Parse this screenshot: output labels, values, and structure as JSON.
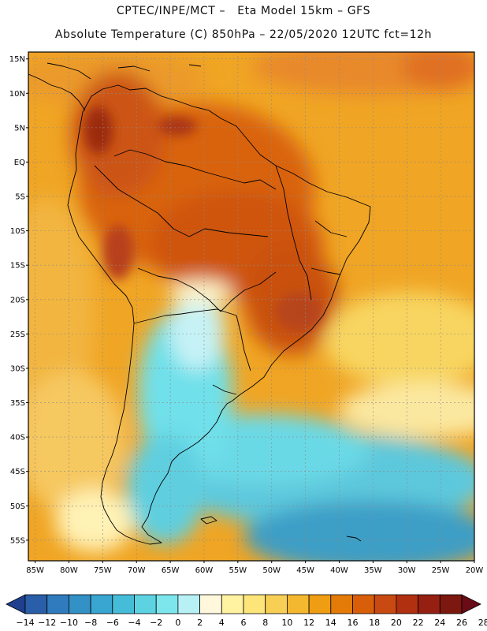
{
  "header": {
    "line1": "CPTEC/INPE/MCT –   Eta Model 15km – GFS",
    "line2": "Absolute Temperature (C) 850hPa – 22/05/2020 12UTC fct=12h"
  },
  "map": {
    "extent": {
      "lon": [
        -86,
        -20
      ],
      "lat": [
        -58,
        16
      ]
    },
    "lat_labels": [
      {
        "v": 15,
        "t": "15N"
      },
      {
        "v": 10,
        "t": "10N"
      },
      {
        "v": 5,
        "t": "5N"
      },
      {
        "v": 0,
        "t": "EQ"
      },
      {
        "v": -5,
        "t": "5S"
      },
      {
        "v": -10,
        "t": "10S"
      },
      {
        "v": -15,
        "t": "15S"
      },
      {
        "v": -20,
        "t": "20S"
      },
      {
        "v": -25,
        "t": "25S"
      },
      {
        "v": -30,
        "t": "30S"
      },
      {
        "v": -35,
        "t": "35S"
      },
      {
        "v": -40,
        "t": "40S"
      },
      {
        "v": -45,
        "t": "45S"
      },
      {
        "v": -50,
        "t": "50S"
      },
      {
        "v": -55,
        "t": "55S"
      }
    ],
    "lon_labels": [
      {
        "v": -85,
        "t": "85W"
      },
      {
        "v": -80,
        "t": "80W"
      },
      {
        "v": -75,
        "t": "75W"
      },
      {
        "v": -70,
        "t": "70W"
      },
      {
        "v": -65,
        "t": "65W"
      },
      {
        "v": -60,
        "t": "60W"
      },
      {
        "v": -55,
        "t": "55W"
      },
      {
        "v": -50,
        "t": "50W"
      },
      {
        "v": -45,
        "t": "45W"
      },
      {
        "v": -40,
        "t": "40W"
      },
      {
        "v": -35,
        "t": "35W"
      },
      {
        "v": -30,
        "t": "30W"
      },
      {
        "v": -25,
        "t": "25W"
      },
      {
        "v": -20,
        "t": "20W"
      }
    ]
  },
  "colorbar": {
    "colors": [
      "#1f3f8f",
      "#2a5ea8",
      "#2f7bbd",
      "#3391c6",
      "#38a6d0",
      "#45bdd8",
      "#5dd3e2",
      "#7de6ec",
      "#b8f1f5",
      "#fff8dc",
      "#fff2a0",
      "#fde57a",
      "#f8cf55",
      "#f3b830",
      "#ef9d12",
      "#e47a08",
      "#d85e0a",
      "#c84a12",
      "#b03010",
      "#952012",
      "#7c1810",
      "#6a0c18"
    ],
    "labels": [
      "-14",
      "-12",
      "-10",
      "-8",
      "-6",
      "-4",
      "-2",
      "0",
      "2",
      "4",
      "6",
      "8",
      "10",
      "12",
      "14",
      "16",
      "18",
      "20",
      "22",
      "24",
      "26",
      "28"
    ]
  }
}
